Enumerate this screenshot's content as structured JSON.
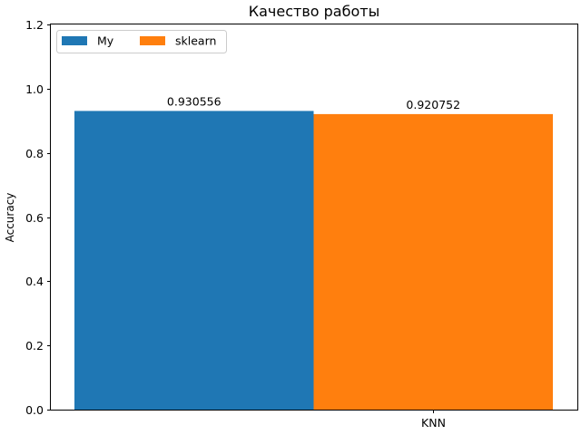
{
  "chart_data": {
    "type": "bar",
    "title": "Качество работы",
    "xlabel": "",
    "ylabel": "Accuracy",
    "categories": [
      "KNN"
    ],
    "series": [
      {
        "name": "My",
        "values": [
          0.930556
        ],
        "label": "0.930556",
        "color": "#1f77b4"
      },
      {
        "name": "sklearn",
        "values": [
          0.920752
        ],
        "label": "0.920752",
        "color": "#ff7f0e"
      }
    ],
    "ylim": [
      0,
      1.2
    ],
    "yticks": [
      0.0,
      0.2,
      0.4,
      0.6,
      0.8,
      1.0,
      1.2
    ],
    "ytick_labels": [
      "0.0",
      "0.2",
      "0.4",
      "0.6",
      "0.8",
      "1.0",
      "1.2"
    ],
    "grid": false,
    "legend_position": "top-left"
  }
}
